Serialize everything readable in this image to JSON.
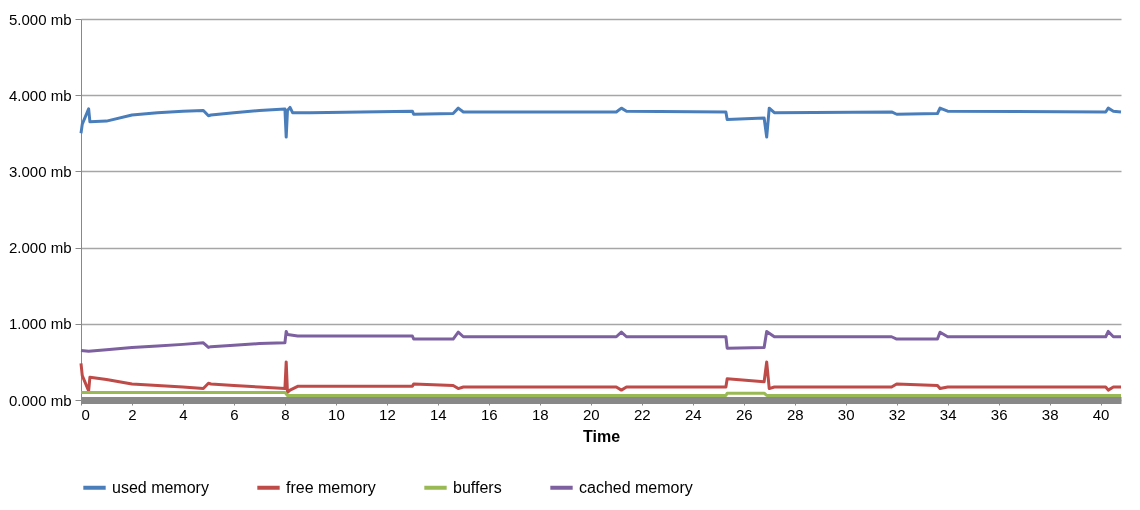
{
  "chart_data": {
    "type": "line",
    "xlabel": "Time",
    "xlim": [
      0,
      40.8
    ],
    "xticks": [
      0,
      2,
      4,
      6,
      8,
      10,
      12,
      14,
      16,
      18,
      20,
      22,
      24,
      26,
      28,
      30,
      32,
      34,
      36,
      38,
      40
    ],
    "ylim": [
      0,
      5
    ],
    "yticks": [
      {
        "value": 0,
        "label": "0.000 mb"
      },
      {
        "value": 1,
        "label": "1.000 mb"
      },
      {
        "value": 2,
        "label": "2.000 mb"
      },
      {
        "value": 3,
        "label": "3.000 mb"
      },
      {
        "value": 4,
        "label": "4.000 mb"
      },
      {
        "value": 5,
        "label": "5.000 mb"
      }
    ],
    "grid": "y",
    "legend": "bottom",
    "marker": "none",
    "line_style": "solid",
    "series": [
      {
        "name": "used memory",
        "color": "#4a7ebb",
        "x": [
          0,
          0.05,
          0.3,
          0.35,
          1,
          2,
          3,
          4,
          4.8,
          5,
          5.1,
          6,
          7,
          8,
          8.05,
          8.1,
          8.2,
          8.3,
          9,
          13,
          13.05,
          14.6,
          14.8,
          15,
          21,
          21.2,
          21.4,
          25.3,
          25.35,
          26.8,
          26.9,
          27,
          27.2,
          31.8,
          32,
          33.6,
          33.7,
          34,
          40.2,
          40.3,
          40.5,
          40.8
        ],
        "values": [
          3.5,
          3.62,
          3.82,
          3.65,
          3.66,
          3.74,
          3.77,
          3.79,
          3.8,
          3.73,
          3.74,
          3.77,
          3.8,
          3.82,
          3.45,
          3.8,
          3.84,
          3.77,
          3.77,
          3.79,
          3.75,
          3.76,
          3.83,
          3.78,
          3.78,
          3.83,
          3.79,
          3.78,
          3.68,
          3.7,
          3.45,
          3.83,
          3.77,
          3.78,
          3.75,
          3.76,
          3.83,
          3.79,
          3.78,
          3.83,
          3.79,
          3.78
        ]
      },
      {
        "name": "free memory",
        "color": "#be4b48",
        "x": [
          0,
          0.05,
          0.3,
          0.35,
          1,
          2,
          3,
          4,
          4.8,
          5,
          5.1,
          6,
          7,
          8,
          8.05,
          8.1,
          8.2,
          8.5,
          13,
          13.05,
          14.6,
          14.8,
          15,
          21,
          21.2,
          21.4,
          25.3,
          25.35,
          26.8,
          26.9,
          27,
          27.2,
          31.8,
          32,
          33.6,
          33.7,
          34,
          40.2,
          40.3,
          40.5,
          40.8
        ],
        "values": [
          0.48,
          0.32,
          0.12,
          0.3,
          0.27,
          0.21,
          0.19,
          0.17,
          0.15,
          0.22,
          0.21,
          0.19,
          0.17,
          0.15,
          0.5,
          0.1,
          0.13,
          0.18,
          0.18,
          0.21,
          0.19,
          0.15,
          0.17,
          0.17,
          0.13,
          0.17,
          0.17,
          0.28,
          0.24,
          0.5,
          0.15,
          0.17,
          0.17,
          0.21,
          0.19,
          0.15,
          0.17,
          0.17,
          0.13,
          0.17,
          0.17
        ]
      },
      {
        "name": "buffers",
        "color": "#98b954",
        "x": [
          0,
          8,
          8.1,
          25.3,
          25.35,
          26.8,
          26.9,
          40.8
        ],
        "values": [
          0.1,
          0.1,
          0.06,
          0.06,
          0.09,
          0.09,
          0.06,
          0.06
        ]
      },
      {
        "name": "cached memory",
        "color": "#7d60a0",
        "x": [
          0,
          0.3,
          1,
          2,
          3,
          4,
          4.8,
          5,
          5.1,
          6,
          7,
          8,
          8.05,
          8.1,
          8.5,
          13,
          13.05,
          14.6,
          14.8,
          15,
          21,
          21.2,
          21.4,
          25.3,
          25.35,
          26.8,
          26.9,
          27.2,
          31.8,
          32,
          33.6,
          33.7,
          34,
          40.2,
          40.3,
          40.5,
          40.8
        ],
        "values": [
          0.65,
          0.64,
          0.66,
          0.69,
          0.71,
          0.73,
          0.75,
          0.69,
          0.7,
          0.72,
          0.74,
          0.75,
          0.9,
          0.86,
          0.84,
          0.84,
          0.8,
          0.8,
          0.89,
          0.83,
          0.83,
          0.89,
          0.83,
          0.83,
          0.68,
          0.69,
          0.9,
          0.83,
          0.83,
          0.8,
          0.8,
          0.89,
          0.83,
          0.83,
          0.9,
          0.83,
          0.83
        ]
      }
    ]
  }
}
